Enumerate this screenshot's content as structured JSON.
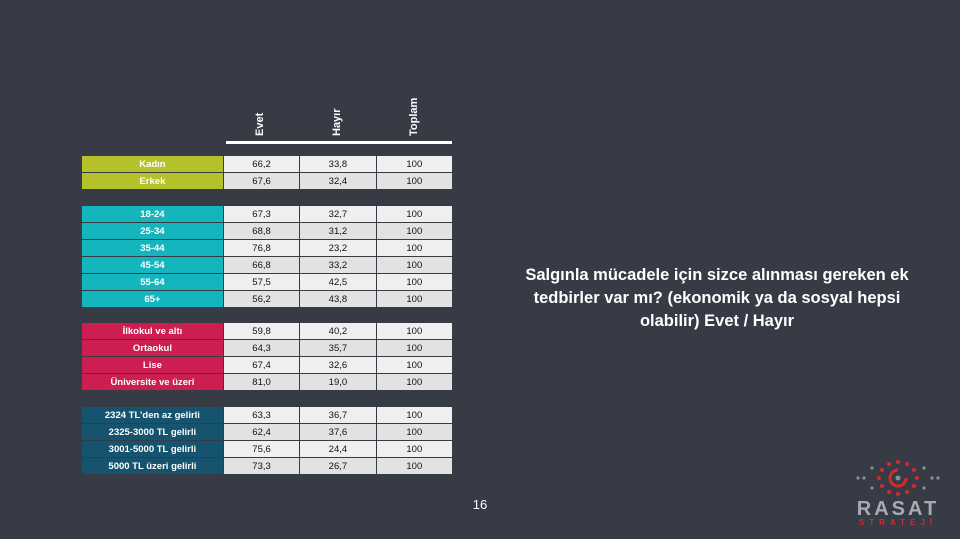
{
  "columns": [
    "Evet",
    "Hayır",
    "Toplam"
  ],
  "groups": [
    {
      "color": "#b5c12a",
      "rows": [
        {
          "label": "Kadın",
          "values": [
            "66,2",
            "33,8",
            "100"
          ]
        },
        {
          "label": "Erkek",
          "values": [
            "67,6",
            "32,4",
            "100"
          ]
        }
      ]
    },
    {
      "color": "#14b5bd",
      "rows": [
        {
          "label": "18-24",
          "values": [
            "67,3",
            "32,7",
            "100"
          ]
        },
        {
          "label": "25-34",
          "values": [
            "68,8",
            "31,2",
            "100"
          ]
        },
        {
          "label": "35-44",
          "values": [
            "76,8",
            "23,2",
            "100"
          ]
        },
        {
          "label": "45-54",
          "values": [
            "66,8",
            "33,2",
            "100"
          ]
        },
        {
          "label": "55-64",
          "values": [
            "57,5",
            "42,5",
            "100"
          ]
        },
        {
          "label": "65+",
          "values": [
            "56,2",
            "43,8",
            "100"
          ]
        }
      ]
    },
    {
      "color": "#cc1e50",
      "rows": [
        {
          "label": "İlkokul ve altı",
          "values": [
            "59,8",
            "40,2",
            "100"
          ]
        },
        {
          "label": "Ortaokul",
          "values": [
            "64,3",
            "35,7",
            "100"
          ]
        },
        {
          "label": "Lise",
          "values": [
            "67,4",
            "32,6",
            "100"
          ]
        },
        {
          "label": "Üniversite ve üzeri",
          "values": [
            "81,0",
            "19,0",
            "100"
          ]
        }
      ]
    },
    {
      "color": "#16536e",
      "rows": [
        {
          "label": "2324 TL’den az gelirli",
          "values": [
            "63,3",
            "36,7",
            "100"
          ]
        },
        {
          "label": "2325-3000 TL gelirli",
          "values": [
            "62,4",
            "37,6",
            "100"
          ]
        },
        {
          "label": "3001-5000 TL gelirli",
          "values": [
            "75,6",
            "24,4",
            "100"
          ]
        },
        {
          "label": "5000 TL üzeri gelirli",
          "values": [
            "73,3",
            "26,7",
            "100"
          ]
        }
      ]
    }
  ],
  "question": "Salgınla mücadele için sizce alınması gereken ek tedbirler var mı? (ekonomik ya da sosyal hepsi olabilir)  Evet / Hayır",
  "page_number": "16",
  "logo": {
    "name": "RASAT",
    "subtitle": "STRATEJİ",
    "icon": "dot-ring-logo-icon"
  }
}
